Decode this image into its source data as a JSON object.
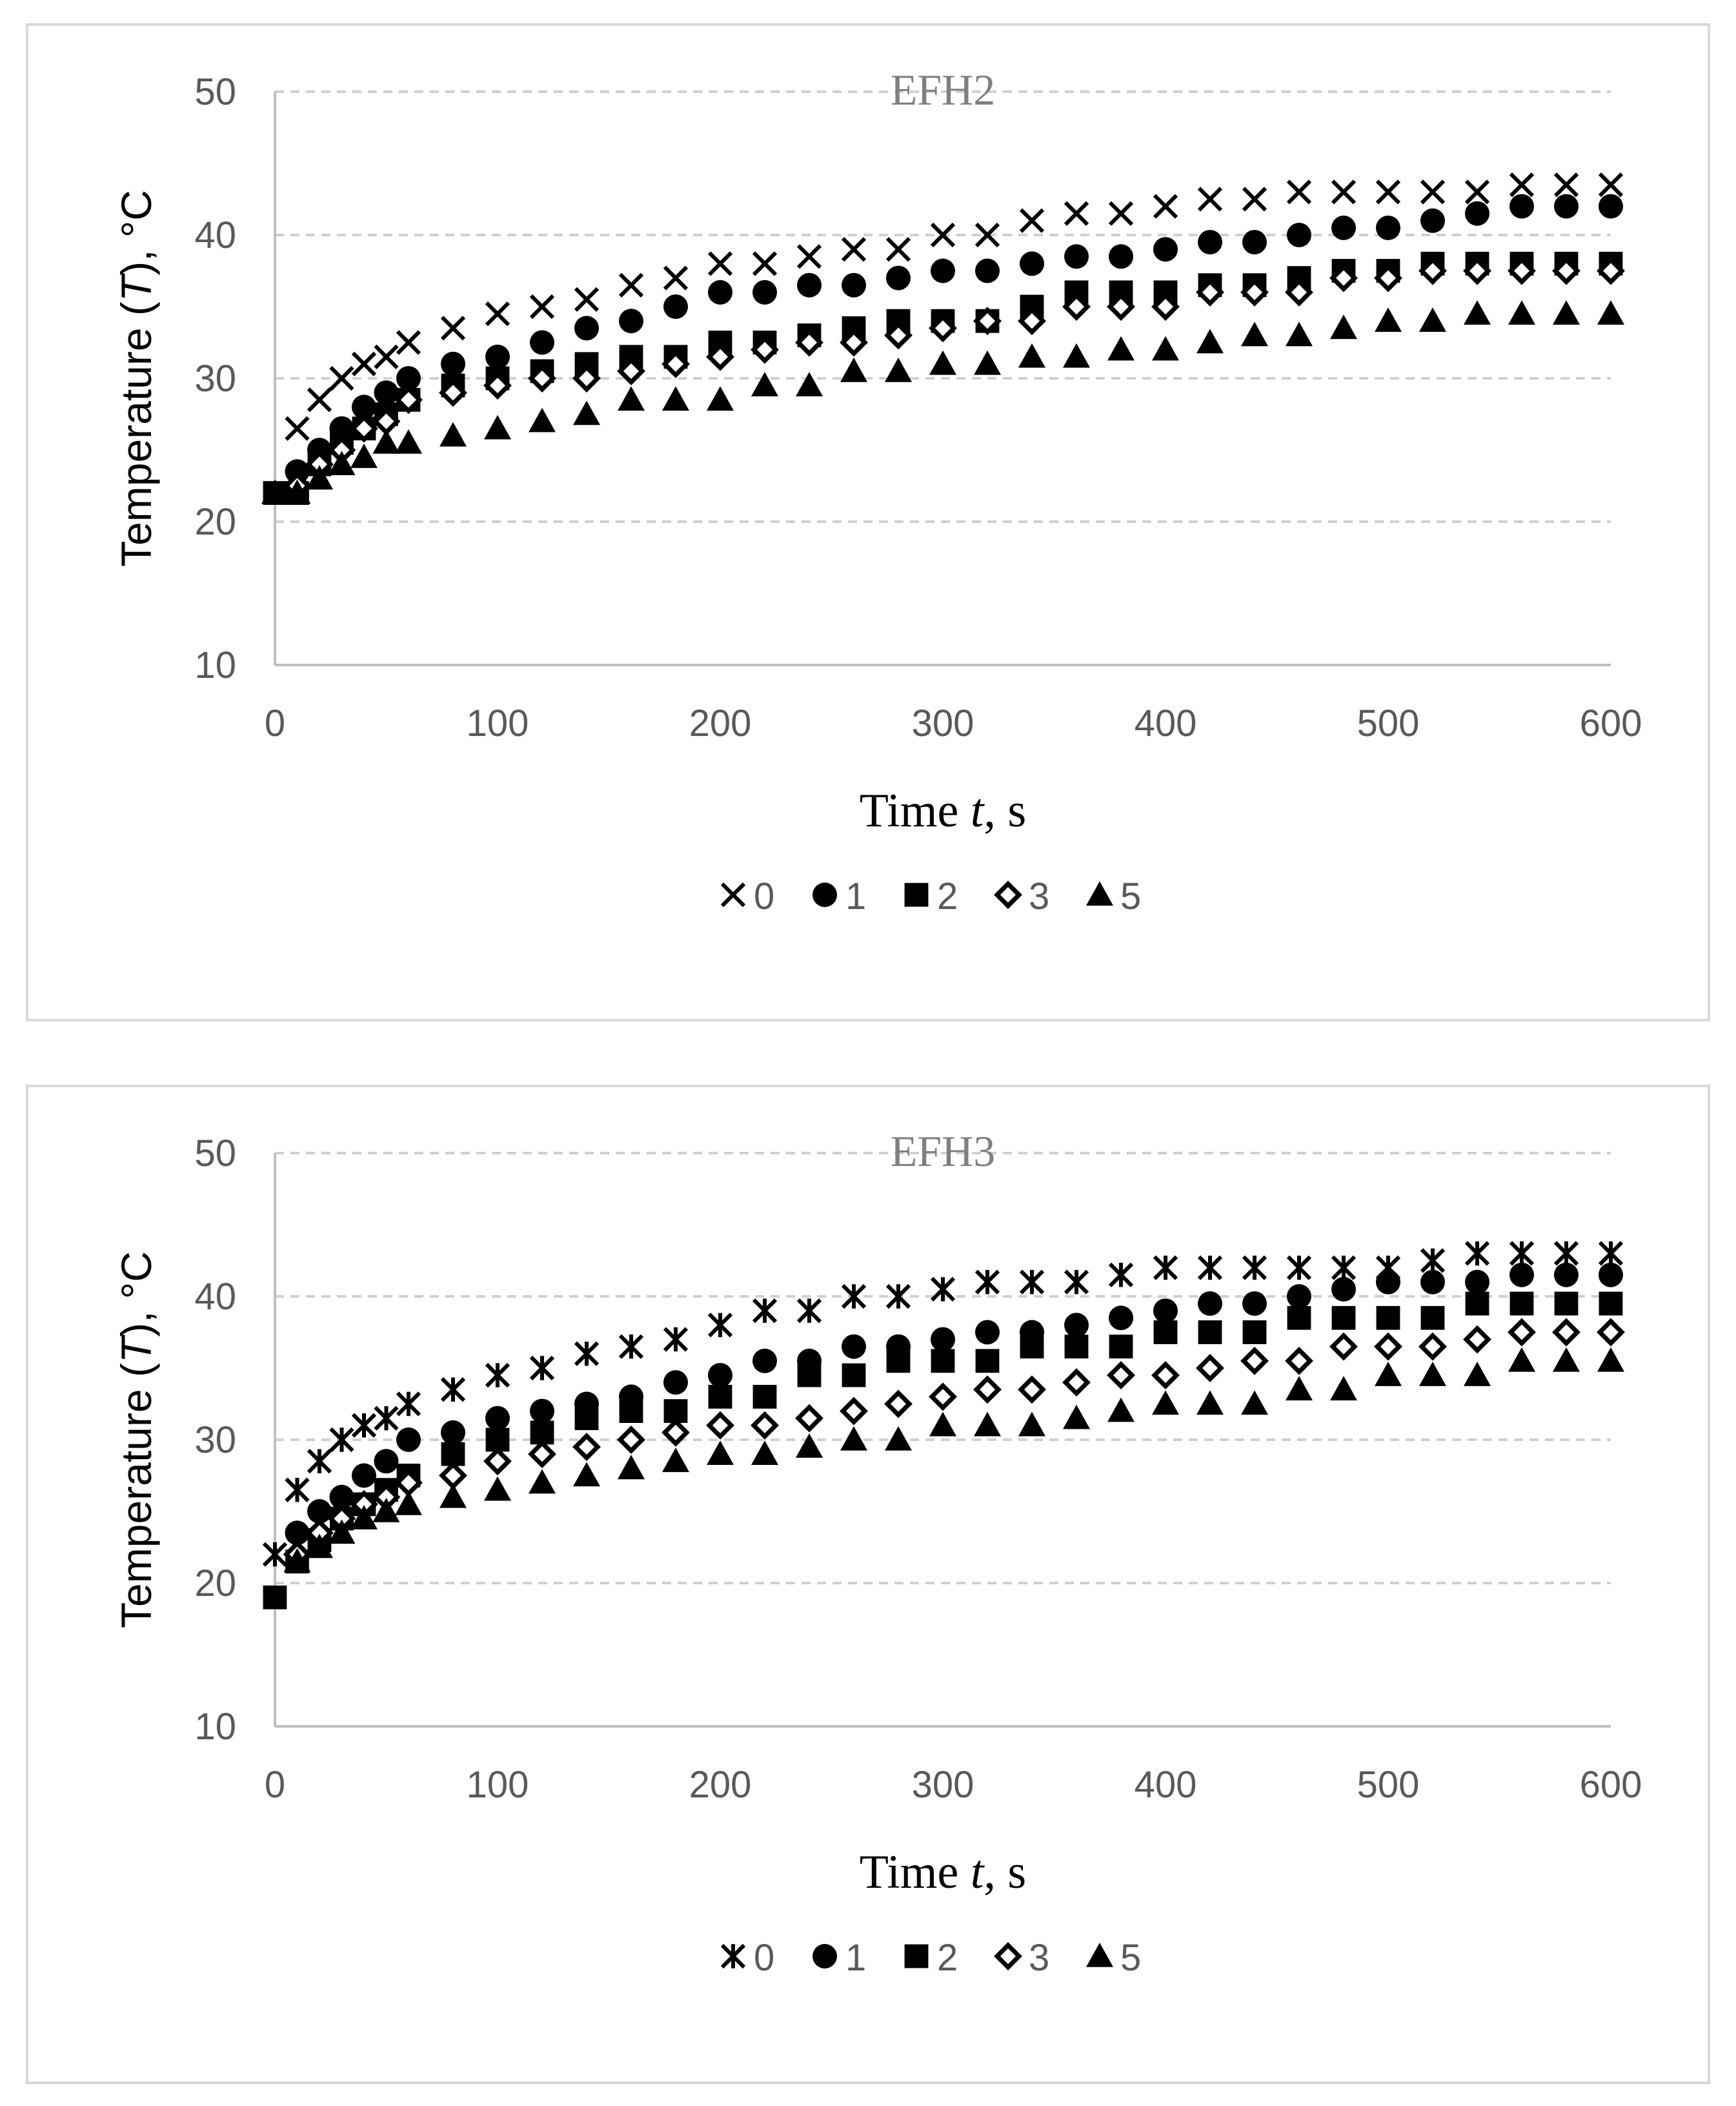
{
  "chart_data": [
    {
      "type": "scatter",
      "title": "EFH2",
      "xlabel": "Time t, s",
      "ylabel": "Temperature (T), °C",
      "xlim": [
        0,
        600
      ],
      "ylim": [
        10,
        50
      ],
      "xticks": [
        0,
        100,
        200,
        300,
        400,
        500,
        600
      ],
      "yticks": [
        10,
        20,
        30,
        40,
        50
      ],
      "grid": "horizontal dashed",
      "legend_position": "bottom",
      "series": [
        {
          "name": "0",
          "marker": "x",
          "x": [
            10,
            20,
            30,
            40,
            50,
            60,
            80,
            100,
            120,
            140,
            160,
            180,
            200,
            220,
            240,
            260,
            280,
            300,
            320,
            340,
            360,
            380,
            400,
            420,
            440,
            460,
            480,
            500,
            520,
            540,
            560,
            580,
            600
          ],
          "y": [
            26.5,
            28.5,
            30,
            31,
            31.5,
            32.5,
            33.5,
            34.5,
            35,
            35.5,
            36.5,
            37,
            38,
            38,
            38.5,
            39,
            39,
            40,
            40,
            41,
            41.5,
            41.5,
            42,
            42.5,
            42.5,
            43,
            43,
            43,
            43,
            43,
            43.5,
            43.5,
            43.5
          ]
        },
        {
          "name": "1",
          "marker": "circle",
          "x": [
            10,
            20,
            30,
            40,
            50,
            60,
            80,
            100,
            120,
            140,
            160,
            180,
            200,
            220,
            240,
            260,
            280,
            300,
            320,
            340,
            360,
            380,
            400,
            420,
            440,
            460,
            480,
            500,
            520,
            540,
            560,
            580,
            600
          ],
          "y": [
            23.5,
            25,
            26.5,
            28,
            29,
            30,
            31,
            31.5,
            32.5,
            33.5,
            34,
            35,
            36,
            36,
            36.5,
            36.5,
            37,
            37.5,
            37.5,
            38,
            38.5,
            38.5,
            39,
            39.5,
            39.5,
            40,
            40.5,
            40.5,
            41,
            41.5,
            42,
            42,
            42
          ]
        },
        {
          "name": "2",
          "marker": "square",
          "x": [
            0,
            10,
            20,
            30,
            40,
            50,
            60,
            80,
            100,
            120,
            140,
            160,
            180,
            200,
            220,
            240,
            260,
            280,
            300,
            320,
            340,
            360,
            380,
            400,
            420,
            440,
            460,
            480,
            500,
            520,
            540,
            560,
            580,
            600
          ],
          "y": [
            22,
            22,
            24,
            25.5,
            26.5,
            27.5,
            28.5,
            29.5,
            30,
            30.5,
            31,
            31.5,
            31.5,
            32.5,
            32.5,
            33,
            33.5,
            34,
            34,
            34,
            35,
            36,
            36,
            36,
            36.5,
            36.5,
            37,
            37.5,
            37.5,
            38,
            38,
            38,
            38,
            38
          ]
        },
        {
          "name": "3",
          "marker": "diamond",
          "x": [
            10,
            20,
            30,
            40,
            50,
            60,
            80,
            100,
            120,
            140,
            160,
            180,
            200,
            220,
            240,
            260,
            280,
            300,
            320,
            340,
            360,
            380,
            400,
            420,
            440,
            460,
            480,
            500,
            520,
            540,
            560,
            580,
            600
          ],
          "y": [
            22.5,
            24,
            25,
            26.5,
            27,
            28.5,
            29,
            29.5,
            30,
            30,
            30.5,
            31,
            31.5,
            32,
            32.5,
            32.5,
            33,
            33.5,
            34,
            34,
            35,
            35,
            35,
            36,
            36,
            36,
            37,
            37,
            37.5,
            37.5,
            37.5,
            37.5,
            37.5
          ]
        },
        {
          "name": "5",
          "marker": "triangle",
          "x": [
            0,
            10,
            20,
            30,
            40,
            50,
            60,
            80,
            100,
            120,
            140,
            160,
            180,
            200,
            220,
            240,
            260,
            280,
            300,
            320,
            340,
            360,
            380,
            400,
            420,
            440,
            460,
            480,
            500,
            520,
            540,
            560,
            580,
            600
          ],
          "y": [
            22,
            22,
            23,
            24,
            24.5,
            25.5,
            25.5,
            26,
            26.5,
            27,
            27.5,
            28.5,
            28.5,
            28.5,
            29.5,
            29.5,
            30.5,
            30.5,
            31,
            31,
            31.5,
            31.5,
            32,
            32,
            32.5,
            33,
            33,
            33.5,
            34,
            34,
            34.5,
            34.5,
            34.5,
            34.5
          ]
        }
      ]
    },
    {
      "type": "scatter",
      "title": "EFH3",
      "xlabel": "Time t, s",
      "ylabel": "Temperature (T), °C",
      "xlim": [
        0,
        600
      ],
      "ylim": [
        10,
        50
      ],
      "xticks": [
        0,
        100,
        200,
        300,
        400,
        500,
        600
      ],
      "yticks": [
        10,
        20,
        30,
        40,
        50
      ],
      "grid": "horizontal dashed",
      "legend_position": "bottom",
      "series": [
        {
          "name": "0",
          "marker": "asterisk",
          "x": [
            0,
            10,
            20,
            30,
            40,
            50,
            60,
            80,
            100,
            120,
            140,
            160,
            180,
            200,
            220,
            240,
            260,
            280,
            300,
            320,
            340,
            360,
            380,
            400,
            420,
            440,
            460,
            480,
            500,
            520,
            540,
            560,
            580,
            600
          ],
          "y": [
            22,
            26.5,
            28.5,
            30,
            31,
            31.5,
            32.5,
            33.5,
            34.5,
            35,
            36,
            36.5,
            37,
            38,
            39,
            39,
            40,
            40,
            40.5,
            41,
            41,
            41,
            41.5,
            42,
            42,
            42,
            42,
            42,
            42,
            42.5,
            43,
            43,
            43,
            43
          ]
        },
        {
          "name": "1",
          "marker": "circle",
          "x": [
            10,
            20,
            30,
            40,
            50,
            60,
            80,
            100,
            120,
            140,
            160,
            180,
            200,
            220,
            240,
            260,
            280,
            300,
            320,
            340,
            360,
            380,
            400,
            420,
            440,
            460,
            480,
            500,
            520,
            540,
            560,
            580,
            600
          ],
          "y": [
            23.5,
            25,
            26,
            27.5,
            28.5,
            30,
            30.5,
            31.5,
            32,
            32.5,
            33,
            34,
            34.5,
            35.5,
            35.5,
            36.5,
            36.5,
            37,
            37.5,
            37.5,
            38,
            38.5,
            39,
            39.5,
            39.5,
            40,
            40.5,
            41,
            41,
            41,
            41.5,
            41.5,
            41.5
          ]
        },
        {
          "name": "2",
          "marker": "square",
          "x": [
            0,
            10,
            20,
            30,
            40,
            50,
            60,
            80,
            100,
            120,
            140,
            160,
            180,
            200,
            220,
            240,
            260,
            280,
            300,
            320,
            340,
            360,
            380,
            400,
            420,
            440,
            460,
            480,
            500,
            520,
            540,
            560,
            580,
            600
          ],
          "y": [
            19,
            21.5,
            23,
            24.5,
            25.5,
            26.5,
            27.5,
            29,
            30,
            30.5,
            31.5,
            32,
            32,
            33,
            33,
            34.5,
            34.5,
            35.5,
            35.5,
            35.5,
            36.5,
            36.5,
            36.5,
            37.5,
            37.5,
            37.5,
            38.5,
            38.5,
            38.5,
            38.5,
            39.5,
            39.5,
            39.5,
            39.5
          ]
        },
        {
          "name": "3",
          "marker": "diamond",
          "x": [
            10,
            20,
            30,
            40,
            50,
            60,
            80,
            100,
            120,
            140,
            160,
            180,
            200,
            220,
            240,
            260,
            280,
            300,
            320,
            340,
            360,
            380,
            400,
            420,
            440,
            460,
            480,
            500,
            520,
            540,
            560,
            580,
            600
          ],
          "y": [
            22,
            23.5,
            24.5,
            25.5,
            26,
            27,
            27.5,
            28.5,
            29,
            29.5,
            30,
            30.5,
            31,
            31,
            31.5,
            32,
            32.5,
            33,
            33.5,
            33.5,
            34,
            34.5,
            34.5,
            35,
            35.5,
            35.5,
            36.5,
            36.5,
            36.5,
            37,
            37.5,
            37.5,
            37.5
          ]
        },
        {
          "name": "5",
          "marker": "triangle",
          "x": [
            10,
            20,
            30,
            40,
            50,
            60,
            80,
            100,
            120,
            140,
            160,
            180,
            200,
            220,
            240,
            260,
            280,
            300,
            320,
            340,
            360,
            380,
            400,
            420,
            440,
            460,
            480,
            500,
            520,
            540,
            560,
            580,
            600
          ],
          "y": [
            21.5,
            22.5,
            23.5,
            24.5,
            25,
            25.5,
            26,
            26.5,
            27,
            27.5,
            28,
            28.5,
            29,
            29,
            29.5,
            30,
            30,
            31,
            31,
            31,
            31.5,
            32,
            32.5,
            32.5,
            32.5,
            33.5,
            33.5,
            34.5,
            34.5,
            34.5,
            35.5,
            35.5,
            35.5
          ]
        }
      ]
    }
  ]
}
